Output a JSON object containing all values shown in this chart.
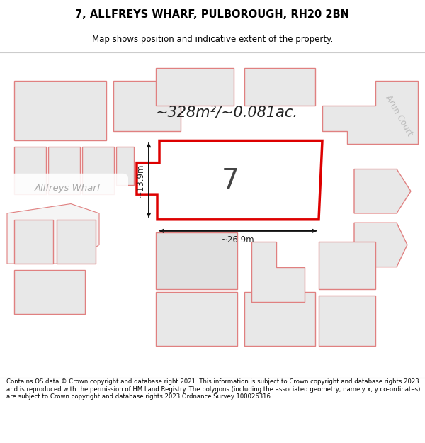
{
  "title_line1": "7, ALLFREYS WHARF, PULBOROUGH, RH20 2BN",
  "title_line2": "Map shows position and indicative extent of the property.",
  "area_label": "~328m²/~0.081ac.",
  "property_number": "7",
  "dim_vertical": "~13.9m",
  "dim_horizontal": "~26.9m",
  "street_label": "Allfreys Wharf",
  "court_label": "Arun Court",
  "map_bg": "#ffffff",
  "building_face": "#e8e8e8",
  "building_edge": "#e08080",
  "highlight_face": "#ffffff",
  "highlight_edge": "#dd0000",
  "arrow_color": "#111111",
  "label_color": "#222222",
  "street_color": "#aaaaaa",
  "footer_text": "Contains OS data © Crown copyright and database right 2021. This information is subject to Crown copyright and database rights 2023 and is reproduced with the permission of HM Land Registry. The polygons (including the associated geometry, namely x, y co-ordinates) are subject to Crown copyright and database rights 2023 Ordnance Survey 100026316."
}
